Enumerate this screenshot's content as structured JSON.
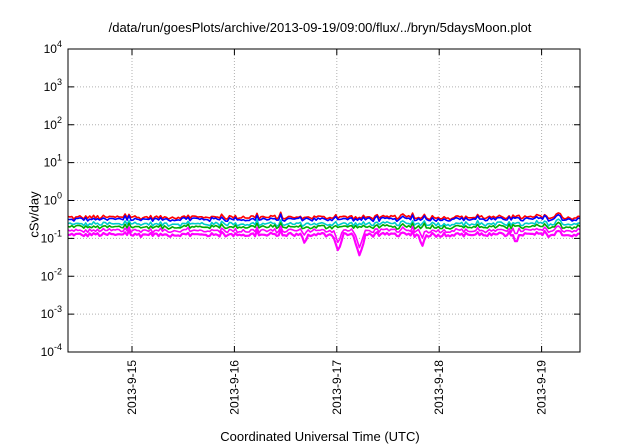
{
  "chart_data": {
    "type": "line",
    "title": "/data/run/goesPlots/archive/2013-09-19/09:00/flux/../bryn/5daysMoon.plot",
    "xlabel": "Coordinated Universal Time (UTC)",
    "ylabel": "cSv/day",
    "yscale": "log",
    "ylim": [
      0.0001,
      10000
    ],
    "grid": true,
    "xlim": [
      "2013-09-14 09:00",
      "2013-09-19 09:00"
    ],
    "xticks": [
      {
        "x": "2013-09-15 00:00",
        "label": "2013-9-15"
      },
      {
        "x": "2013-09-16 00:00",
        "label": "2013-9-16"
      },
      {
        "x": "2013-09-17 00:00",
        "label": "2013-9-17"
      },
      {
        "x": "2013-09-18 00:00",
        "label": "2013-9-18"
      },
      {
        "x": "2013-09-19 00:00",
        "label": "2013-9-19"
      }
    ],
    "yticks": [
      {
        "y": 0.0001,
        "base": "10",
        "exp": "-4"
      },
      {
        "y": 0.001,
        "base": "10",
        "exp": "-3"
      },
      {
        "y": 0.01,
        "base": "10",
        "exp": "-2"
      },
      {
        "y": 0.1,
        "base": "10",
        "exp": "-1"
      },
      {
        "y": 1,
        "base": "10",
        "exp": "0"
      },
      {
        "y": 10,
        "base": "10",
        "exp": "1"
      },
      {
        "y": 100,
        "base": "10",
        "exp": "2"
      },
      {
        "y": 1000,
        "base": "10",
        "exp": "3"
      },
      {
        "y": 10000,
        "base": "10",
        "exp": "4"
      }
    ],
    "series": [
      {
        "color": "#ff0000",
        "level": 0.36
      },
      {
        "color": "#0000ff",
        "level": 0.32
      },
      {
        "color": "#00cccc",
        "level": 0.24
      },
      {
        "color": "#00aa00",
        "level": 0.2
      },
      {
        "color": "#ff00ff",
        "level": 0.16
      },
      {
        "color": "#ff00ff",
        "level": 0.125
      }
    ],
    "dips": [
      {
        "x": "2013-09-16 16:30",
        "y": 0.07
      },
      {
        "x": "2013-09-17 00:20",
        "y": 0.045
      },
      {
        "x": "2013-09-17 05:20",
        "y": 0.035
      },
      {
        "x": "2013-09-17 20:00",
        "y": 0.06
      },
      {
        "x": "2013-09-18 18:00",
        "y": 0.07
      }
    ]
  }
}
